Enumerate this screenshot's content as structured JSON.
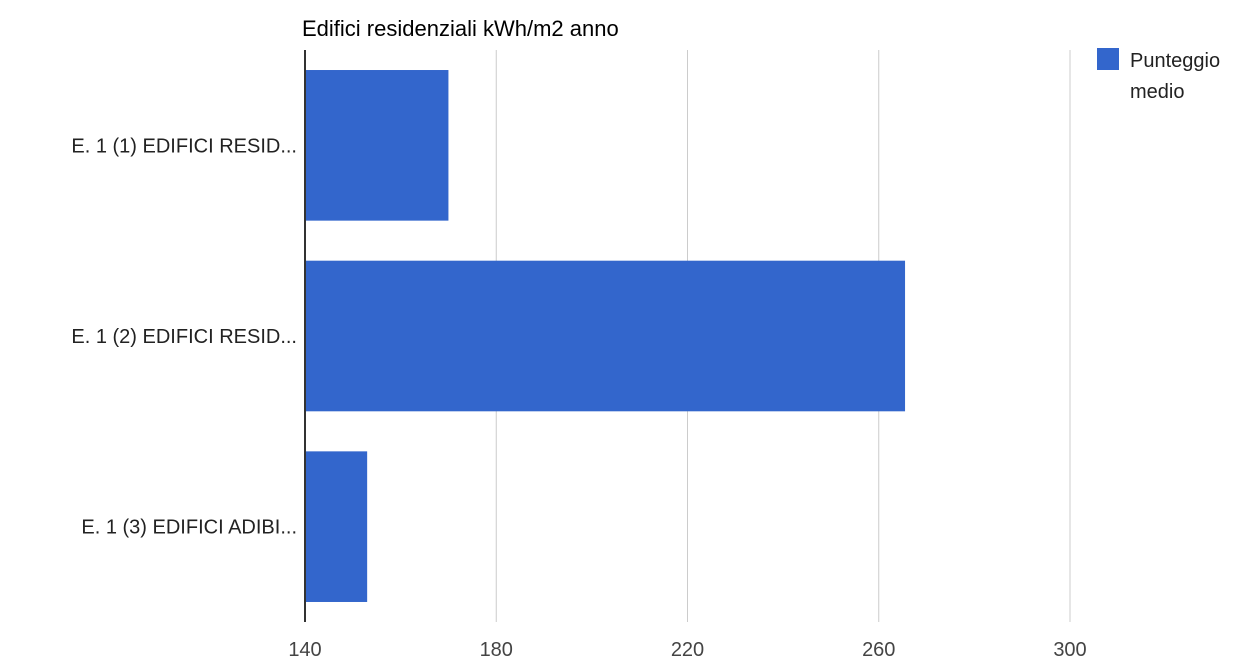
{
  "chart_data": {
    "type": "bar",
    "orientation": "horizontal",
    "title": "Edifici residenziali kWh/m2 anno",
    "xlabel": "",
    "ylabel": "",
    "categories": [
      "E. 1 (1) EDIFICI RESID...",
      "E. 1 (2) EDIFICI RESID...",
      "E. 1 (3) EDIFICI ADIBI..."
    ],
    "series": [
      {
        "name": "Punteggio medio",
        "values": [
          170,
          265.5,
          153
        ],
        "color": "#3366cc"
      }
    ],
    "xlim": [
      140,
      300
    ],
    "xticks": [
      140,
      180,
      220,
      260,
      300
    ],
    "grid": true,
    "legend_position": "right",
    "legend_lines": [
      "Punteggio",
      "medio"
    ]
  }
}
